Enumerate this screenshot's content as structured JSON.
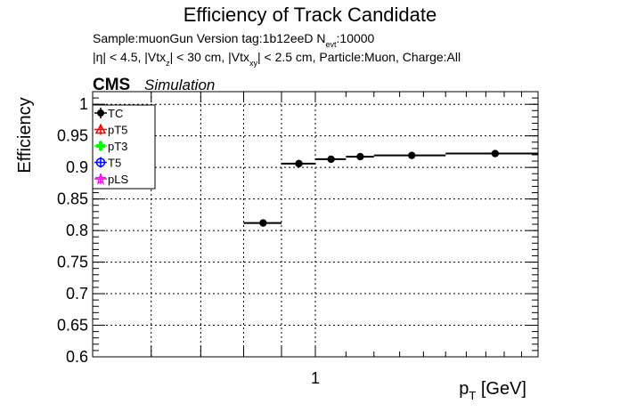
{
  "header": {
    "title": "Efficiency of Track Candidate",
    "info_line1": "Sample:muonGun   Version tag:1b12eeD  N",
    "info_line1_sub": "evt",
    "info_line1_end": ":10000",
    "info_line2_parts": [
      "|η| < 4.5, |Vtx",
      "z",
      "| < 30 cm, |Vtx",
      "xy",
      "| < 2.5 cm, Particle:Muon, Charge:All"
    ],
    "cms": "CMS",
    "simulation": "Simulation"
  },
  "chart_data": {
    "type": "scatter",
    "x_scale": "log",
    "xlim": [
      0.5,
      2.0
    ],
    "ylim": [
      0.6,
      1.02
    ],
    "grid": true,
    "ylabel": "Efficiency",
    "xlabel_main": "p",
    "xlabel_sub": "T",
    "xlabel_unit": " [GeV]",
    "y_ticks": [
      0.6,
      0.65,
      0.7,
      0.75,
      0.8,
      0.85,
      0.9,
      0.95,
      1.0
    ],
    "y_tick_labels": [
      "0.6",
      "0.65",
      "0.7",
      "0.75",
      "0.8",
      "0.85",
      "0.9",
      "0.95",
      "1"
    ],
    "x_tick_labels": [
      {
        "value": 1.0,
        "label": "1"
      }
    ],
    "legend": {
      "placement": "top-left",
      "entries": [
        {
          "label": "TC",
          "color": "#000000",
          "marker": "filled-circle"
        },
        {
          "label": "pT5",
          "color": "#ff0000",
          "marker": "open-triangle"
        },
        {
          "label": "pT3",
          "color": "#00ff00",
          "marker": "filled-cross"
        },
        {
          "label": "T5",
          "color": "#0000ff",
          "marker": "open-circle"
        },
        {
          "label": "pLS",
          "color": "#ff00ff",
          "marker": "open-star"
        }
      ]
    },
    "series": [
      {
        "name": "TC",
        "color": "#000000",
        "points": [
          {
            "x": 0.85,
            "y": 0.812,
            "xlo": 0.8,
            "xhi": 0.9
          },
          {
            "x": 0.95,
            "y": 0.906,
            "xlo": 0.9,
            "xhi": 1.0
          },
          {
            "x": 1.05,
            "y": 0.913,
            "xlo": 1.0,
            "xhi": 1.1
          },
          {
            "x": 1.15,
            "y": 0.917,
            "xlo": 1.1,
            "xhi": 1.2
          },
          {
            "x": 1.35,
            "y": 0.919,
            "xlo": 1.2,
            "xhi": 1.5
          },
          {
            "x": 1.75,
            "y": 0.922,
            "xlo": 1.5,
            "xhi": 2.0
          }
        ]
      }
    ]
  }
}
